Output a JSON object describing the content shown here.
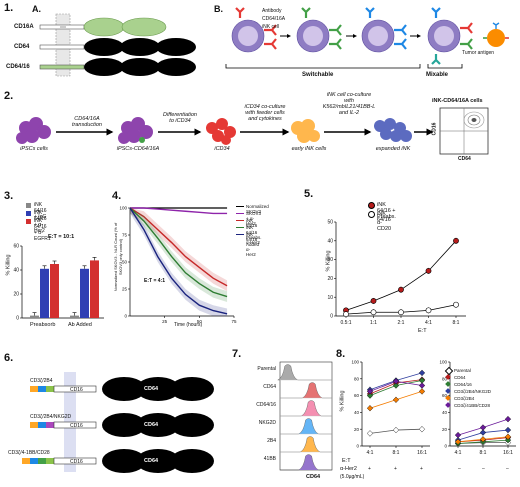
{
  "panel_labels": [
    "1.",
    "2.",
    "3.",
    "4.",
    "5.",
    "6.",
    "7.",
    "8."
  ],
  "p1a": {
    "label": "A.",
    "constructs": [
      "CD16A",
      "CD64",
      "CD64/16"
    ],
    "colors": {
      "cd16": "#a9d18e",
      "cd64": "#000000",
      "tm": "#cccccc"
    }
  },
  "p1b": {
    "label": "B.",
    "legend": [
      "Antibody",
      "CD64/16A",
      "iNK cell"
    ],
    "groups": [
      "Switchable",
      "Mixable"
    ],
    "tumor": "Tumor antigen",
    "colors": {
      "cell": "#8e7cc3",
      "ab_red": "#e53935",
      "ab_green": "#43a047",
      "ab_blue": "#1e88e5",
      "ab_teal": "#26a69a"
    }
  },
  "p2": {
    "steps": [
      "CD64/16A transduction",
      "Differentiation to iCD34",
      "iCD34 co-culture with feeder cells and cytokines",
      "iNK cell co-culture with K562/mbIL21/41BB-L and IL-2"
    ],
    "cells": [
      "iPSCs cells",
      "iPSCs-CD64/16A",
      "iCD34",
      "early iNK cells",
      "expanded iNK"
    ],
    "flow_title": "iNK-CD64/16A cells",
    "flow_x": "CD64",
    "flow_y": "CD16"
  },
  "p3": {
    "legend": [
      "iNK 64/16 + IgG",
      "iNK 64/16 + α-Her2",
      "iNK 64/16 + α-EGFR1"
    ],
    "ratio": "E:T = 10:1",
    "ylabel": "% Killing",
    "groups": [
      "Preabsorb",
      "Ab Added"
    ],
    "yticks": [
      "0",
      "20",
      "40",
      "60"
    ],
    "colors": [
      "#888888",
      "#2f3fb3",
      "#d32f2f"
    ]
  },
  "p4": {
    "legend": [
      "Normalized SKOV3",
      "SKOV3 + α-Her2",
      "iNK 64/16",
      "iNK 64/16 Preabs. α-Her2",
      "iNK 64/16 Added α-Her2"
    ],
    "ratio": "E:T = 4:1",
    "xlabel": "Time (hours)",
    "ylabel": "Normalized SKOV3 - NLR Count (% of SKOV3 only control)",
    "xticks": [
      "25",
      "50",
      "75"
    ],
    "yticks": [
      "0",
      "25",
      "50",
      "75",
      "100"
    ],
    "colors": [
      "#000000",
      "#8e24aa",
      "#c62828",
      "#2e7d32",
      "#1a237e"
    ]
  },
  "p5": {
    "legend": [
      "iNK 64/16 + Preabs. α-CD20",
      "iNK 64/16"
    ],
    "ylabel": "% Killing",
    "xlabel": "E:T",
    "xticks": [
      "0.5:1",
      "1:1",
      "2:1",
      "4:1",
      "8:1"
    ],
    "yticks": [
      "0",
      "10",
      "20",
      "30",
      "40",
      "50"
    ]
  },
  "p6": {
    "rows": [
      {
        "left": "CD3ζ/2B4",
        "mid": "CD16",
        "right": "CD64"
      },
      {
        "left": "CD3ζ/2B4/NKG2D",
        "mid": "CD16",
        "right": "CD64"
      },
      {
        "left": "CD3ζ/4-1BB/CD28",
        "mid": "CD16",
        "right": "CD64"
      }
    ]
  },
  "p7": {
    "rows": [
      "Parental",
      "CD64",
      "CD64/16",
      "NKG2D",
      "2B4",
      "41BB"
    ],
    "xlabel": "CD64",
    "colors": [
      "#aaaaaa",
      "#e57373",
      "#f48fb1",
      "#64b5f6",
      "#ffb74d",
      "#9575cd"
    ]
  },
  "p8": {
    "ylabel": "% Killing",
    "xticks": [
      "4:1",
      "8:1",
      "16:1"
    ],
    "et_label": "E:T",
    "her2_label": "α-Her2",
    "conc": "(5.0µg/mL)",
    "left_signs": [
      "+",
      "+",
      "+"
    ],
    "right_signs": [
      "–",
      "–",
      "–"
    ],
    "yticks": [
      "0",
      "20",
      "40",
      "60",
      "80",
      "100"
    ],
    "legend": [
      "Parental",
      "CD64",
      "CD64/16",
      "CD3ζ/2B4/NKG2D",
      "CD3ζ/2B4",
      "CD3ζ/41BB/CD28"
    ],
    "colors": [
      "#ffffff",
      "#b71c1c",
      "#2e7d32",
      "#303f9f",
      "#f57c00",
      "#6a1b9a"
    ]
  },
  "chart_data": [
    {
      "type": "bar",
      "title": "",
      "categories": [
        "Preabsorb",
        "Ab Added"
      ],
      "series": [
        {
          "name": "iNK 64/16 + IgG",
          "values": [
            2,
            2
          ]
        },
        {
          "name": "iNK 64/16 + α-Her2",
          "values": [
            41,
            41
          ]
        },
        {
          "name": "iNK 64/16 + α-EGFR1",
          "values": [
            45,
            48
          ]
        }
      ],
      "ylabel": "% Killing",
      "ylim": [
        0,
        60
      ]
    },
    {
      "type": "line",
      "title": "",
      "x": [
        0,
        10,
        20,
        30,
        40,
        50,
        60,
        70
      ],
      "series": [
        {
          "name": "Normalized SKOV3",
          "values": [
            100,
            100,
            100,
            100,
            100,
            100,
            100,
            100
          ]
        },
        {
          "name": "SKOV3 + α-Her2",
          "values": [
            100,
            100,
            99,
            98,
            97,
            96,
            95,
            95
          ]
        },
        {
          "name": "iNK 64/16",
          "values": [
            100,
            92,
            80,
            68,
            55,
            45,
            35,
            28
          ]
        },
        {
          "name": "iNK 64/16 Preabs. α-Her2",
          "values": [
            100,
            88,
            72,
            55,
            40,
            30,
            22,
            18
          ]
        },
        {
          "name": "iNK 64/16 Added α-Her2",
          "values": [
            100,
            80,
            55,
            35,
            20,
            10,
            5,
            2
          ]
        }
      ],
      "xlabel": "Time (hours)",
      "ylabel": "Normalized SKOV3 - NLR Count (% of SKOV3 only control)",
      "xlim": [
        0,
        75
      ],
      "ylim": [
        0,
        100
      ]
    },
    {
      "type": "line",
      "title": "",
      "categories": [
        "0.5:1",
        "1:1",
        "2:1",
        "4:1",
        "8:1"
      ],
      "series": [
        {
          "name": "iNK 64/16 + Preabs. α-CD20",
          "values": [
            3,
            8,
            14,
            24,
            40
          ]
        },
        {
          "name": "iNK 64/16",
          "values": [
            1,
            2,
            2,
            3,
            6
          ]
        }
      ],
      "xlabel": "E:T",
      "ylabel": "% Killing",
      "ylim": [
        0,
        50
      ]
    },
    {
      "type": "line",
      "title": "",
      "categories": [
        "4:1",
        "8:1",
        "16:1"
      ],
      "series": [
        {
          "values": [
            62,
            75,
            79
          ]
        },
        {
          "values": [
            60,
            72,
            78
          ]
        },
        {
          "values": [
            67,
            78,
            87
          ]
        },
        {
          "values": [
            45,
            55,
            65
          ]
        },
        {
          "values": [
            65,
            77,
            72
          ]
        },
        {
          "values": [
            15,
            19,
            20
          ]
        }
      ],
      "ylabel": "% Killing",
      "ylim": [
        0,
        100
      ]
    },
    {
      "type": "line",
      "title": "",
      "categories": [
        "4:1",
        "8:1",
        "16:1"
      ],
      "series": [
        {
          "name": "Parental",
          "values": [
            3,
            4,
            4
          ]
        },
        {
          "name": "CD64",
          "values": [
            5,
            7,
            10
          ]
        },
        {
          "name": "CD64/16",
          "values": [
            3,
            5,
            7
          ]
        },
        {
          "name": "CD3ζ/2B4/NKG2D",
          "values": [
            7,
            16,
            19
          ]
        },
        {
          "name": "CD3ζ/2B4",
          "values": [
            5,
            8,
            11
          ]
        },
        {
          "name": "CD3ζ/41BB/CD28",
          "values": [
            13,
            22,
            32
          ]
        }
      ],
      "ylabel": "% Killing",
      "ylim": [
        0,
        100
      ]
    }
  ]
}
